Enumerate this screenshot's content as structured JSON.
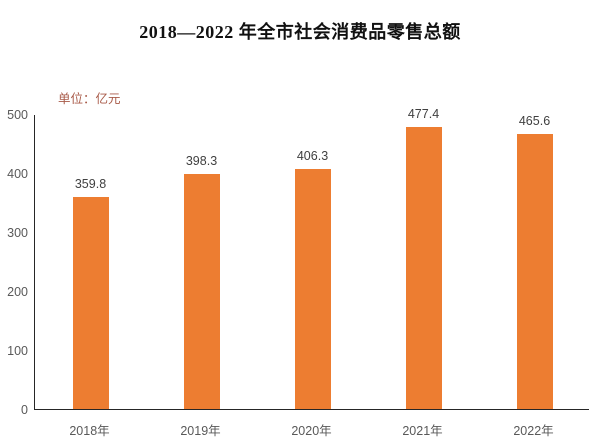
{
  "title": "2018—2022 年全市社会消费品零售总额",
  "unit_label": "单位：亿元",
  "colors": {
    "bar": "#ED7D31",
    "axis_line": "#262626",
    "tick_label": "#595959",
    "data_label": "#404040",
    "unit_label": "#a85a48",
    "title": "#111111",
    "background": "#ffffff"
  },
  "chart_data": {
    "type": "bar",
    "title": "2018—2022 年全市全市社会消费品零售总额 (see top-level title)",
    "categories": [
      "2018年",
      "2019年",
      "2020年",
      "2021年",
      "2022年"
    ],
    "values": [
      359.8,
      398.3,
      406.3,
      477.4,
      465.6
    ],
    "data_labels": [
      "359.8",
      "398.3",
      "406.3",
      "477.4",
      "465.6"
    ],
    "xlabel": "",
    "ylabel": "单位：亿元",
    "ylim": [
      0,
      500
    ],
    "yticks": [
      0,
      100,
      200,
      300,
      400,
      500
    ],
    "grid": false,
    "legend": "none",
    "bar_color": "#ED7D31"
  }
}
